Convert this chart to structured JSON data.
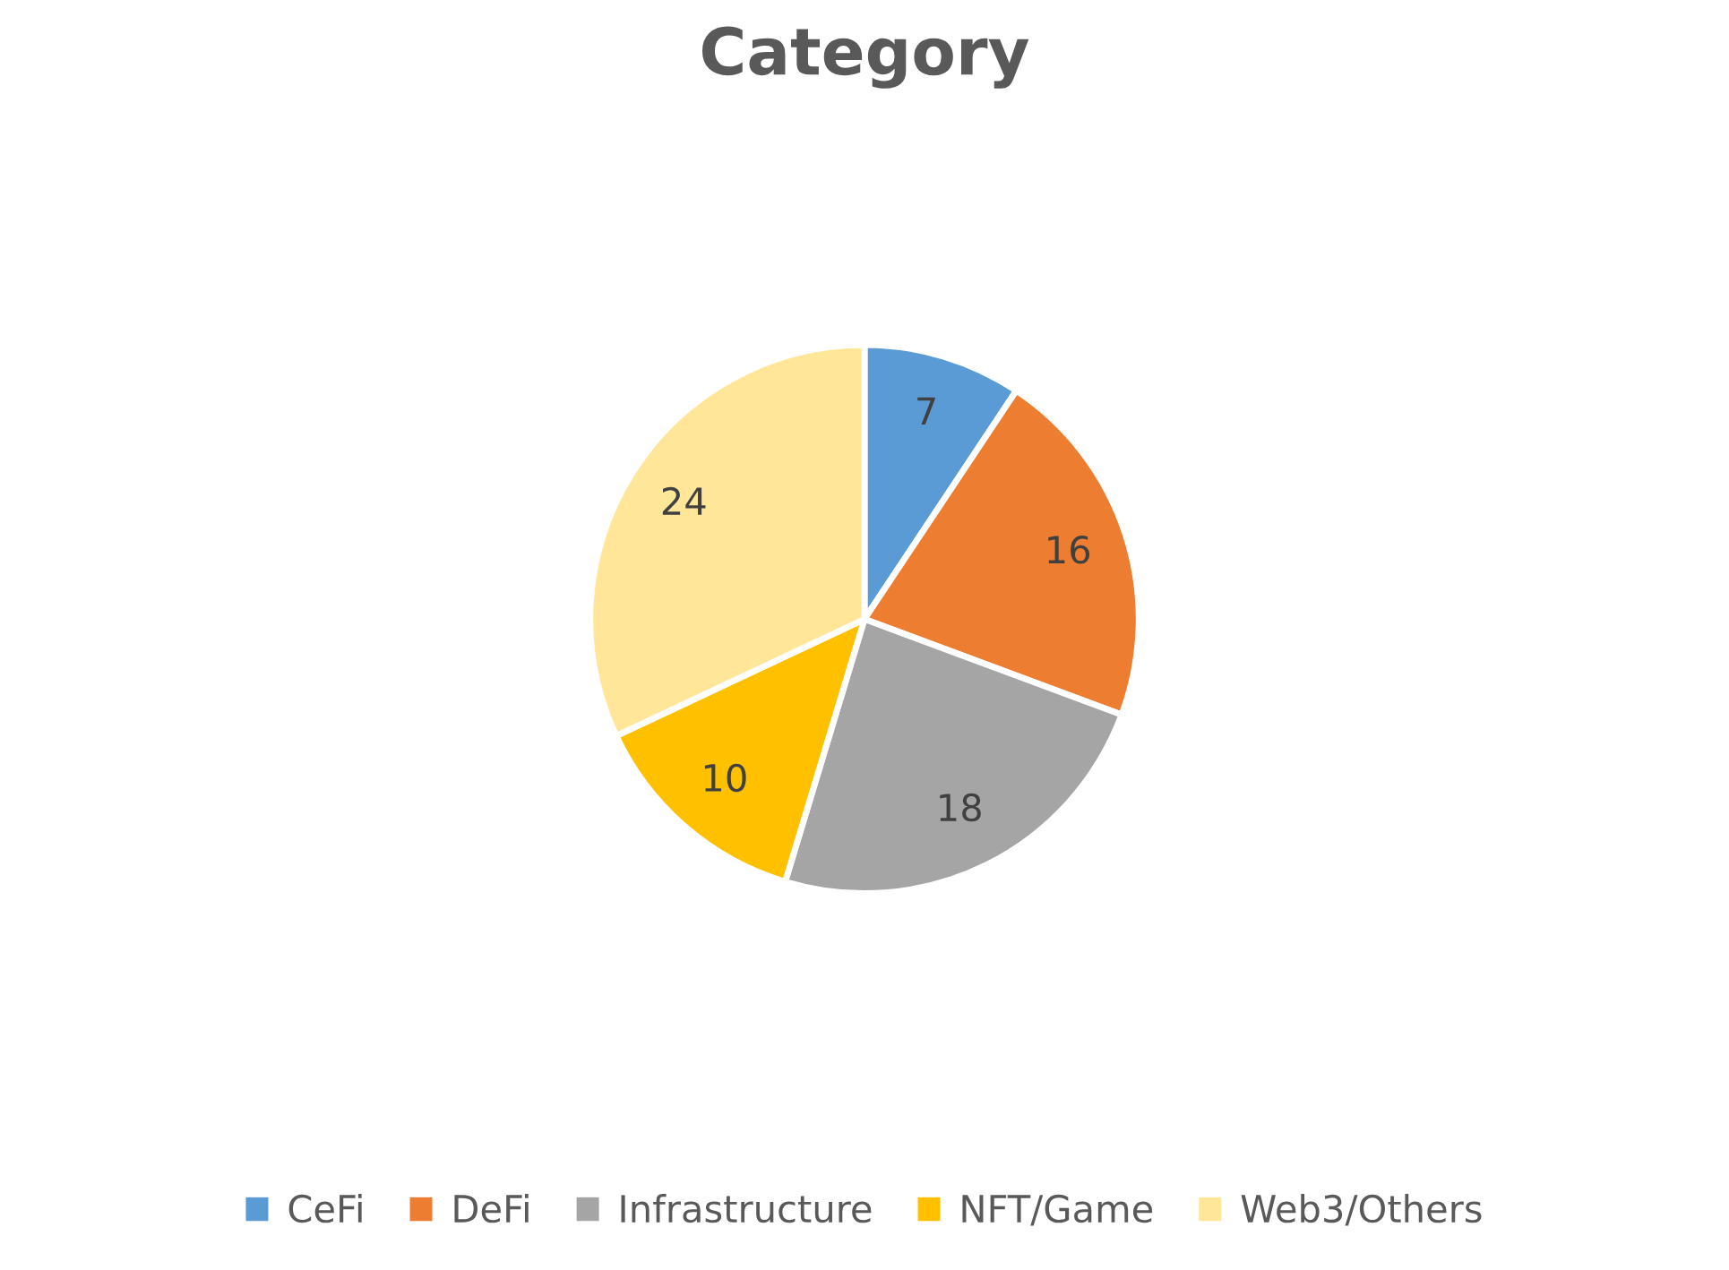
{
  "chart_data": {
    "type": "pie",
    "title": "Category",
    "categories": [
      "CeFi",
      "DeFi",
      "Infrastructure",
      "NFT/Game",
      "Web3/Others"
    ],
    "values": [
      7,
      16,
      18,
      10,
      24
    ],
    "colors": [
      "#5b9bd5",
      "#ed7d31",
      "#a5a5a5",
      "#ffc000",
      "#ffe699"
    ],
    "data_labels": true,
    "legend": "bottom"
  }
}
